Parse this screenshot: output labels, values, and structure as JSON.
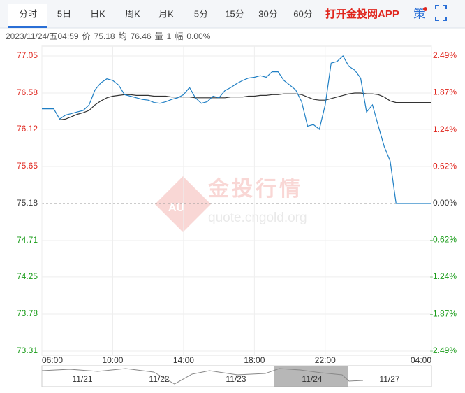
{
  "tabs": [
    "分时",
    "5日",
    "日K",
    "周K",
    "月K",
    "5分",
    "15分",
    "30分",
    "60分"
  ],
  "app_link": "打开金投网APP",
  "strategy": "策",
  "info": {
    "datetime": "2023/11/24/五04:59",
    "price_label": "价",
    "price": 75.18,
    "avg_label": "均",
    "avg": 76.46,
    "volume_label": "量",
    "volume": 1,
    "change_label": "幅",
    "change": "0.00%"
  },
  "watermark": {
    "logo": "AU",
    "title": "金投行情",
    "url": "quote.cngold.org"
  },
  "navigator": {
    "dates": [
      "11/21",
      "11/22",
      "11/23",
      "11/24",
      "11/27"
    ]
  },
  "chart_data": {
    "type": "line",
    "categories": [
      "06:00",
      null,
      null,
      null,
      null,
      null,
      null,
      null,
      null,
      null,
      null,
      null,
      "10:00",
      null,
      null,
      null,
      null,
      null,
      null,
      null,
      null,
      null,
      null,
      null,
      "14:00",
      null,
      null,
      null,
      null,
      null,
      null,
      null,
      null,
      null,
      null,
      null,
      "18:00",
      null,
      null,
      null,
      null,
      null,
      null,
      null,
      null,
      null,
      null,
      null,
      "22:00",
      null,
      null,
      null,
      null,
      null,
      null,
      null,
      null,
      null,
      null,
      null,
      null,
      null,
      null,
      null,
      null,
      null,
      "04:00"
    ],
    "series": [
      {
        "name": "价",
        "color": "#1f7fc4",
        "values": [
          76.38,
          76.38,
          76.38,
          76.25,
          76.3,
          76.32,
          76.34,
          76.36,
          76.43,
          76.62,
          76.71,
          76.76,
          76.74,
          76.68,
          76.56,
          76.54,
          76.52,
          76.5,
          76.49,
          76.46,
          76.45,
          76.47,
          76.5,
          76.52,
          76.56,
          76.65,
          76.52,
          76.45,
          76.47,
          76.54,
          76.52,
          76.61,
          76.65,
          76.7,
          76.74,
          76.77,
          76.78,
          76.8,
          76.78,
          76.85,
          76.85,
          76.74,
          76.68,
          76.62,
          76.47,
          76.16,
          76.18,
          76.12,
          76.43,
          76.96,
          76.98,
          77.05,
          76.92,
          76.87,
          76.77,
          76.34,
          76.43,
          76.16,
          75.9,
          75.72,
          75.18,
          75.18,
          75.18,
          75.18,
          75.18,
          75.18,
          75.18
        ]
      },
      {
        "name": "均",
        "color": "#333333",
        "values": [
          null,
          null,
          null,
          76.24,
          76.25,
          76.28,
          76.31,
          76.33,
          76.36,
          76.43,
          76.48,
          76.52,
          76.54,
          76.55,
          76.56,
          76.56,
          76.55,
          76.55,
          76.55,
          76.54,
          76.54,
          76.54,
          76.53,
          76.53,
          76.53,
          76.53,
          76.52,
          76.52,
          76.52,
          76.52,
          76.52,
          76.52,
          76.53,
          76.53,
          76.53,
          76.54,
          76.54,
          76.55,
          76.55,
          76.56,
          76.56,
          76.57,
          76.57,
          76.57,
          76.56,
          76.53,
          76.5,
          76.49,
          76.49,
          76.51,
          76.53,
          76.55,
          76.57,
          76.58,
          76.58,
          76.57,
          76.57,
          76.56,
          76.53,
          76.48,
          76.46,
          76.46,
          76.46,
          76.46,
          76.46,
          76.46,
          76.46
        ]
      }
    ],
    "ylim": [
      73.31,
      77.05
    ],
    "yticks": [
      77.05,
      76.58,
      76.12,
      75.65,
      75.18,
      74.71,
      74.25,
      73.78,
      73.31
    ],
    "y2lim": [
      -2.49,
      2.49
    ],
    "y2ticks": [
      {
        "value": 2.49,
        "label": "2.49%"
      },
      {
        "value": 1.87,
        "label": "1.87%"
      },
      {
        "value": 1.24,
        "label": "1.24%"
      },
      {
        "value": 0.62,
        "label": "0.62%"
      },
      {
        "value": 0,
        "label": "0.00%"
      },
      {
        "value": -0.62,
        "label": "-0.62%"
      },
      {
        "value": -1.24,
        "label": "-1.24%"
      },
      {
        "value": -1.87,
        "label": "-1.87%"
      },
      {
        "value": -2.49,
        "label": "-2.49%"
      }
    ],
    "reference": 75.18,
    "up_color": "#e0261e",
    "down_color": "#1a9c1a",
    "grid": true
  }
}
